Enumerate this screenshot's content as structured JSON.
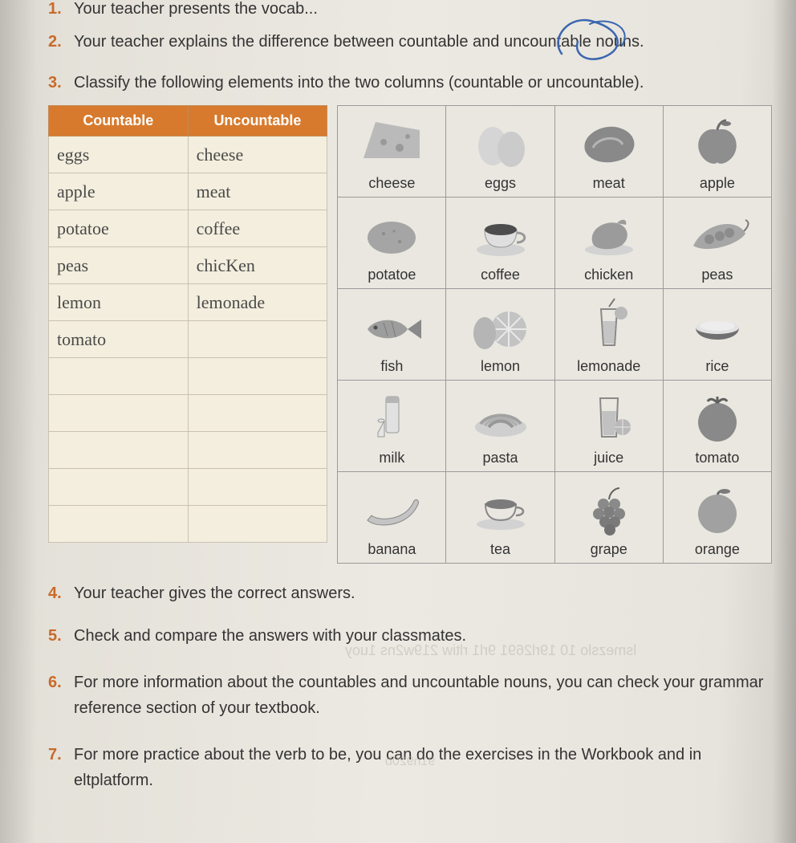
{
  "items": {
    "i1": {
      "num": "1.",
      "text": "Your teacher presents the vocab..."
    },
    "i2": {
      "num": "2.",
      "text": "Your teacher explains the difference between countable and uncountable nouns."
    },
    "i3": {
      "num": "3.",
      "text": "Classify the following elements into the two columns (countable or uncountable)."
    },
    "i4": {
      "num": "4.",
      "text": "Your teacher gives the correct answers."
    },
    "i5": {
      "num": "5.",
      "text": "Check and compare the answers with your classmates."
    },
    "i6": {
      "num": "6.",
      "text": "For more information about the countables and uncountable nouns, you can check your grammar reference section of your textbook."
    },
    "i7": {
      "num": "7.",
      "text": "For more practice about the verb to be, you can do the exercises in the Workbook and in eltplatform."
    }
  },
  "class_table": {
    "header_bg": "#d77a2d",
    "headers": {
      "c": "Countable",
      "u": "Uncountable"
    },
    "rows": [
      {
        "c": "eggs",
        "u": "cheese"
      },
      {
        "c": "apple",
        "u": "meat"
      },
      {
        "c": "potatoe",
        "u": "coffee"
      },
      {
        "c": "peas",
        "u": "chicKen"
      },
      {
        "c": "lemon",
        "u": "lemonade"
      },
      {
        "c": "tomato",
        "u": ""
      },
      {
        "c": "",
        "u": ""
      },
      {
        "c": "",
        "u": ""
      },
      {
        "c": "",
        "u": ""
      },
      {
        "c": "",
        "u": ""
      },
      {
        "c": "",
        "u": ""
      }
    ]
  },
  "food_grid": {
    "cells": [
      [
        "cheese",
        "eggs",
        "meat",
        "apple"
      ],
      [
        "potatoe",
        "coffee",
        "chicken",
        "peas"
      ],
      [
        "fish",
        "lemon",
        "lemonade",
        "rice"
      ],
      [
        "milk",
        "pasta",
        "juice",
        "tomato"
      ],
      [
        "banana",
        "tea",
        "grape",
        "orange"
      ]
    ],
    "icon_map": {
      "cheese": "cheese",
      "eggs": "eggs",
      "meat": "meat",
      "apple": "apple",
      "potatoe": "potato",
      "coffee": "coffee",
      "chicken": "chicken",
      "peas": "peas",
      "fish": "fish",
      "lemon": "lemon",
      "lemonade": "lemonade",
      "rice": "rice",
      "milk": "milk",
      "pasta": "pasta",
      "juice": "juice",
      "tomato": "tomato",
      "banana": "banana",
      "tea": "tea",
      "grape": "grape",
      "orange": "orange"
    }
  },
  "ghost_text": {
    "a": "lsmezslo 10 19rl2691 9rl1 rltiw 219w2ns 1uoy",
    "b": "91n920b"
  }
}
